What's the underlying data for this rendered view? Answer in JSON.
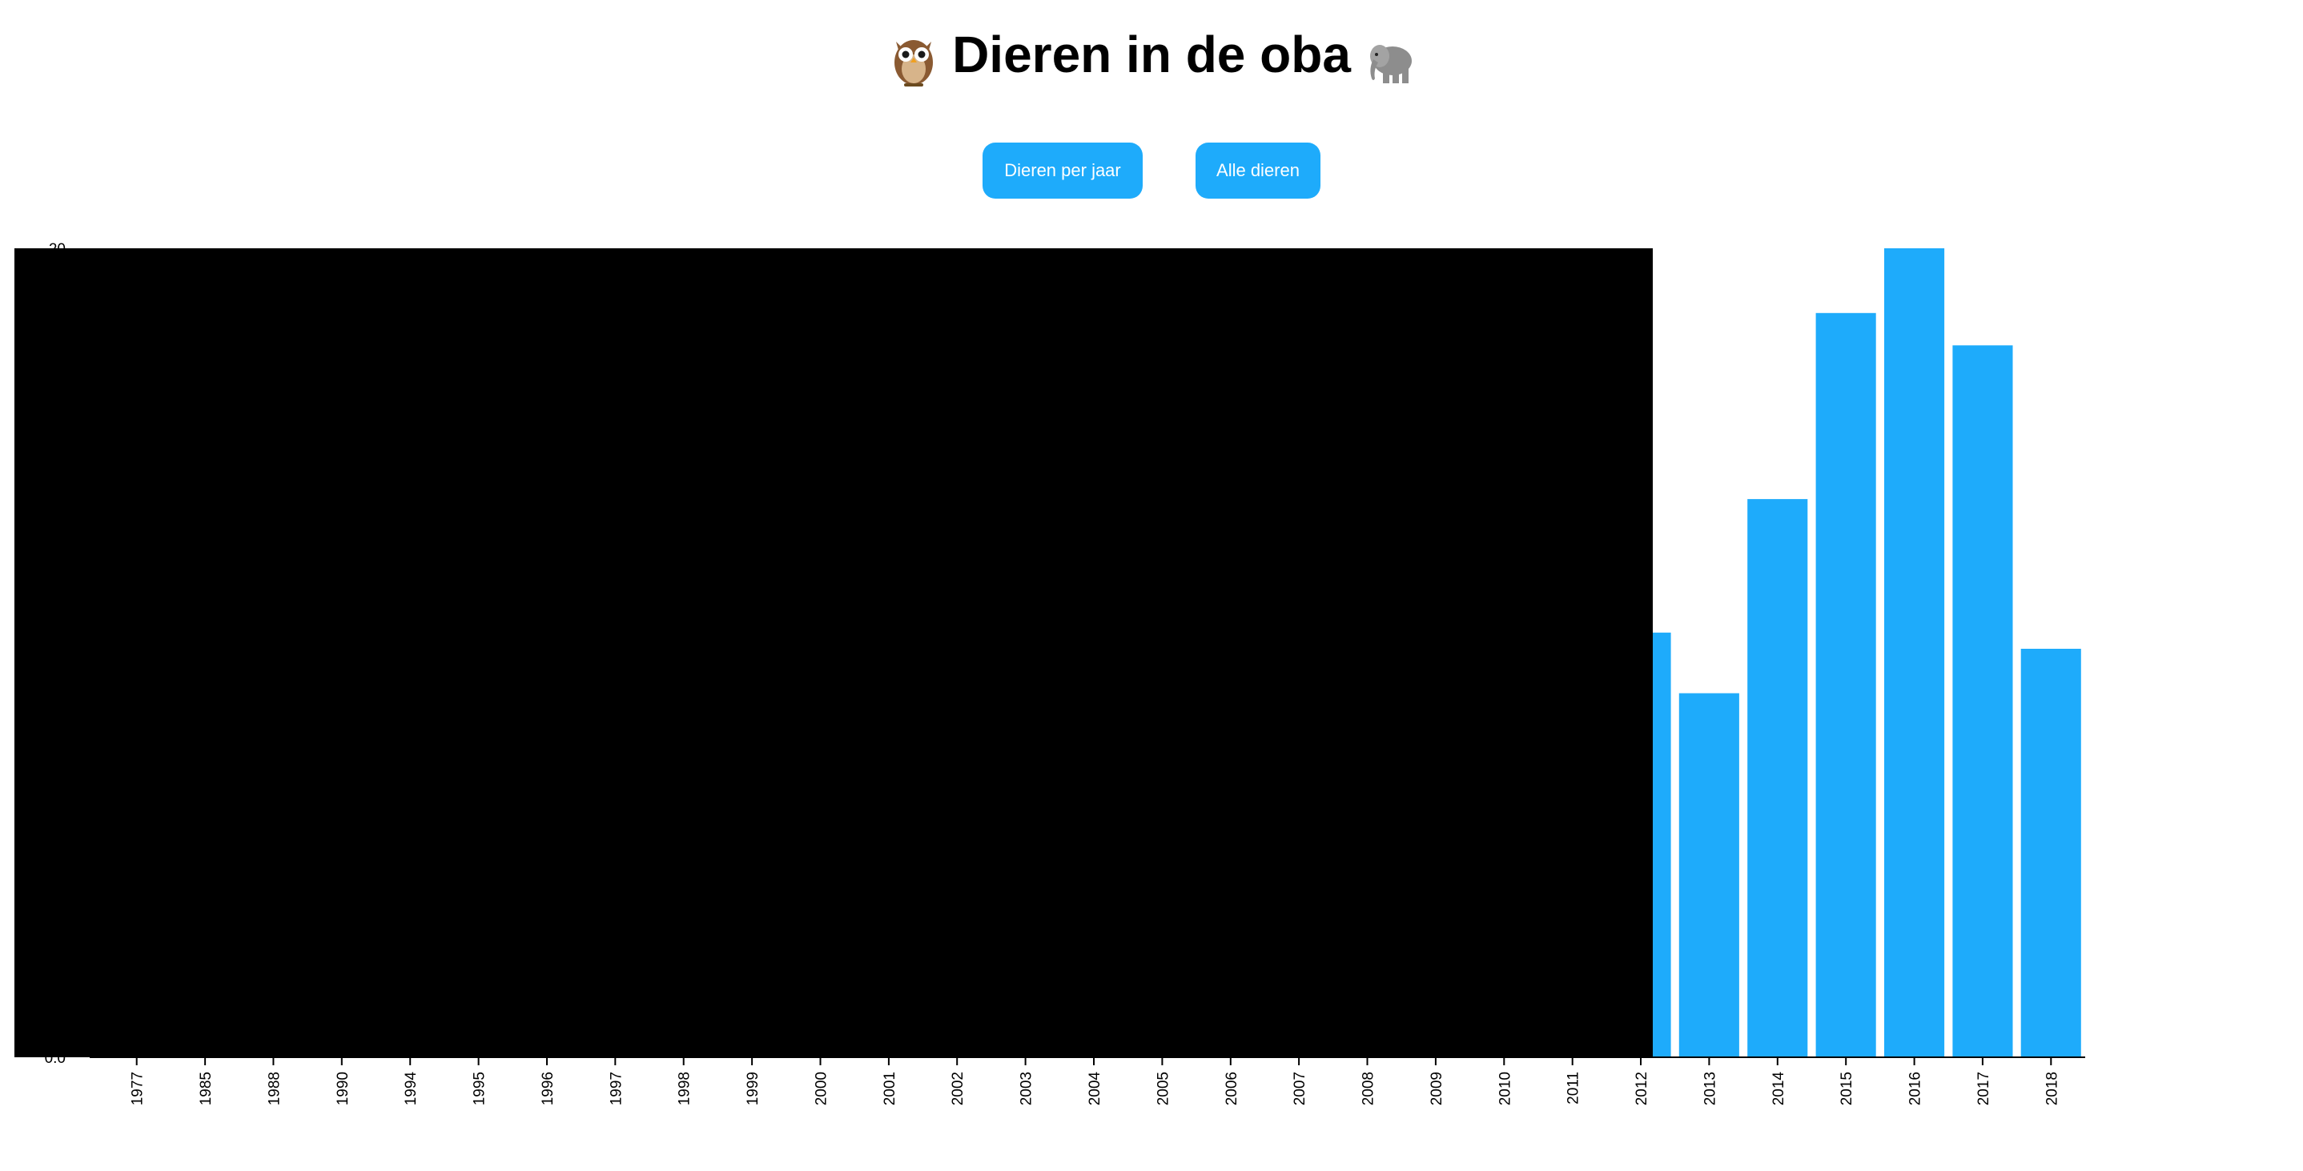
{
  "header": {
    "title": "Dieren in de oba",
    "left_icon": "owl-icon",
    "right_icon": "elephant-icon"
  },
  "buttons": {
    "per_year_label": "Dieren per jaar",
    "all_label": "Alle dieren"
  },
  "colors": {
    "bar": "#1eabfb",
    "redaction": "#000000",
    "axis": "#000000"
  },
  "chart_data": {
    "type": "bar",
    "categories": [
      "1977",
      "1985",
      "1988",
      "1990",
      "1994",
      "1995",
      "1996",
      "1997",
      "1998",
      "1999",
      "2000",
      "2001",
      "2002",
      "2003",
      "2004",
      "2005",
      "2006",
      "2007",
      "2008",
      "2009",
      "2010",
      "2011",
      "2012",
      "2013",
      "2014",
      "2015",
      "2016",
      "2017",
      "2018"
    ],
    "values": [
      null,
      null,
      null,
      null,
      null,
      null,
      null,
      null,
      null,
      null,
      null,
      null,
      null,
      null,
      null,
      null,
      null,
      null,
      null,
      null,
      null,
      null,
      10.5,
      9.0,
      13.8,
      18.4,
      20.0,
      17.6,
      10.1
    ],
    "redacted_categories": [
      "1977",
      "1985",
      "1988",
      "1990",
      "1994",
      "1995",
      "1996",
      "1997",
      "1998",
      "1999",
      "2000",
      "2001",
      "2002",
      "2003",
      "2004",
      "2005",
      "2006",
      "2007",
      "2008",
      "2009",
      "2010",
      "2011"
    ],
    "ylim": [
      0,
      20
    ],
    "y_tick_labels": [
      "0.0",
      "20"
    ],
    "xlabel": "",
    "ylabel": "",
    "grid": false,
    "legend": "none"
  }
}
